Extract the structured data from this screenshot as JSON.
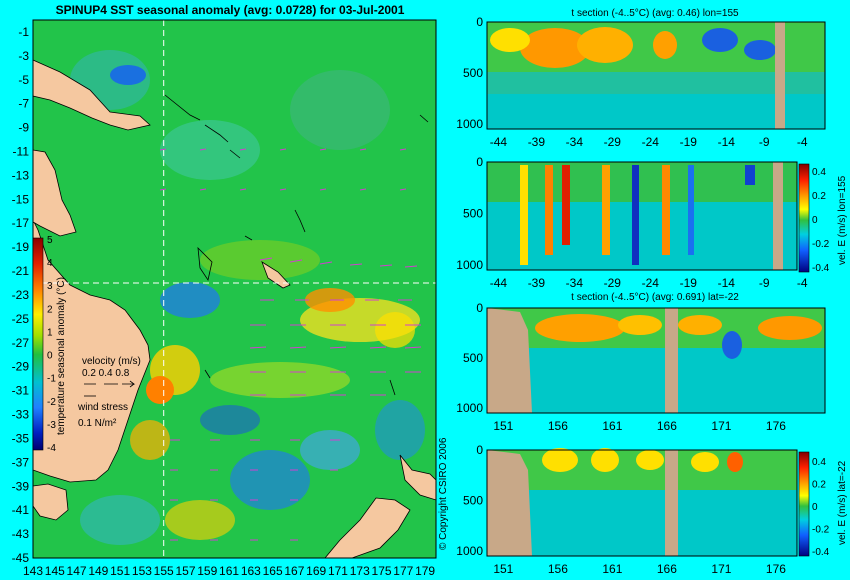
{
  "chart_data": [
    {
      "type": "heatmap",
      "title": "SPINUP4 SST seasonal anomaly  (avg: 0.0728)  for 03-Jul-2001",
      "colorbar_label": "temperature seasonal anomaly (°C)",
      "colorbar_ticks": [
        "5",
        "4",
        "3",
        "2",
        "1",
        "0",
        "-1",
        "-2",
        "-3",
        "-4"
      ],
      "x_ticks": [
        "143",
        "145",
        "147",
        "149",
        "151",
        "153",
        "155",
        "157",
        "159",
        "161",
        "163",
        "165",
        "167",
        "169",
        "171",
        "173",
        "175",
        "177",
        "179"
      ],
      "y_ticks": [
        "-1",
        "-3",
        "-5",
        "-7",
        "-9",
        "-11",
        "-13",
        "-15",
        "-17",
        "-19",
        "-21",
        "-23",
        "-25",
        "-27",
        "-29",
        "-31",
        "-33",
        "-35",
        "-37",
        "-39",
        "-41",
        "-43",
        "-45"
      ],
      "xlim": [
        143,
        180
      ],
      "ylim": [
        -45,
        0
      ],
      "section_lon": 155,
      "section_lat": -22,
      "velocity_legend": {
        "label": "velocity (m/s)",
        "scale": "0.2 0.4 0.8"
      },
      "wind_legend": {
        "label": "wind stress",
        "scale": "0.1 N/m²"
      }
    },
    {
      "type": "heatmap",
      "title": "t section (-4..5°C)   (avg: 0.46)  lon=155",
      "x_ticks": [
        "-44",
        "-39",
        "-34",
        "-29",
        "-24",
        "-19",
        "-14",
        "-9",
        "-4"
      ],
      "y_ticks": [
        "0",
        "500",
        "1000"
      ]
    },
    {
      "type": "heatmap",
      "x_ticks": [
        "-44",
        "-39",
        "-34",
        "-29",
        "-24",
        "-19",
        "-14",
        "-9",
        "-4"
      ],
      "y_ticks": [
        "0",
        "500",
        "1000"
      ],
      "colorbar_label": "vel. E (m/s) lon=155",
      "colorbar_ticks": [
        "0.4",
        "0.2",
        "0",
        "-0.2",
        "-0.4"
      ]
    },
    {
      "type": "heatmap",
      "title": "t section (-4..5°C)   (avg: 0.691)  lat=-22",
      "x_ticks": [
        "151",
        "156",
        "161",
        "166",
        "171",
        "176"
      ],
      "y_ticks": [
        "0",
        "500",
        "1000"
      ]
    },
    {
      "type": "heatmap",
      "x_ticks": [
        "151",
        "156",
        "161",
        "166",
        "171",
        "176"
      ],
      "y_ticks": [
        "0",
        "500",
        "1000"
      ],
      "colorbar_label": "vel. E (m/s) lat=-22",
      "colorbar_ticks": [
        "0.4",
        "0.2",
        "0",
        "-0.2",
        "-0.4"
      ]
    }
  ],
  "copyright": "© Copyright CSIRO 2006",
  "colors": {
    "background": "#00ffff",
    "land": "#f5c8a0",
    "ocean_base": "#22c44a",
    "vectors": "#d040d0",
    "section_land": "#c8a888"
  }
}
